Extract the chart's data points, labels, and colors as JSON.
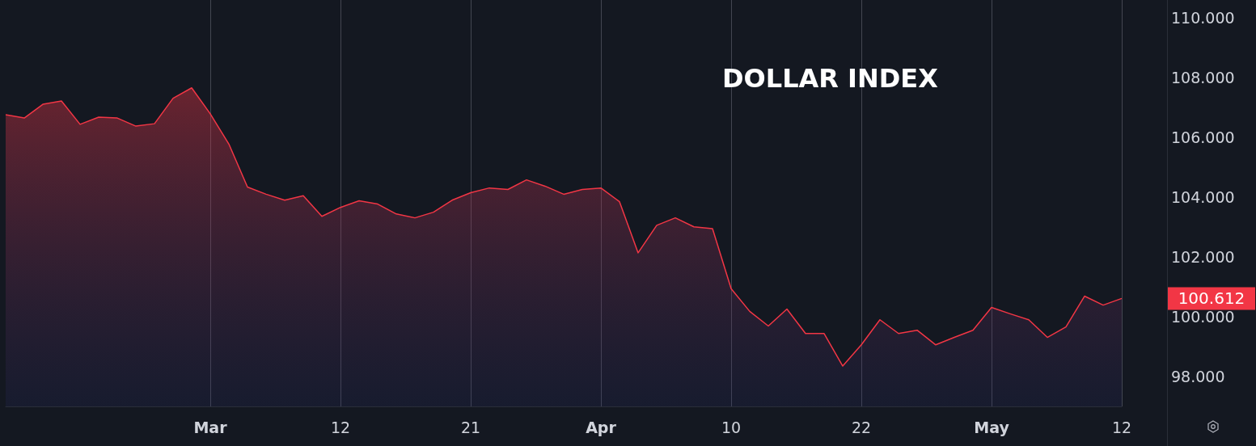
{
  "chart_data": {
    "type": "area",
    "title": "DOLLAR INDEX",
    "categories": [
      null,
      null,
      null,
      null,
      null,
      null,
      null,
      null,
      null,
      null,
      null,
      "Mar",
      null,
      null,
      null,
      null,
      null,
      null,
      "12",
      null,
      null,
      null,
      null,
      null,
      null,
      "21",
      null,
      null,
      null,
      null,
      null,
      null,
      "Apr",
      null,
      null,
      null,
      null,
      null,
      null,
      "10",
      null,
      null,
      null,
      null,
      null,
      null,
      "22",
      null,
      null,
      null,
      null,
      null,
      null,
      "May",
      null,
      null,
      null,
      null,
      null,
      null,
      "12"
    ],
    "series": [
      {
        "color": "#f23645",
        "values": [
          106.76,
          106.65,
          107.11,
          107.22,
          106.44,
          106.68,
          106.65,
          106.38,
          106.46,
          107.31,
          107.66,
          106.79,
          105.78,
          104.34,
          104.1,
          103.9,
          104.05,
          103.36,
          103.66,
          103.88,
          103.77,
          103.44,
          103.31,
          103.5,
          103.9,
          104.15,
          104.31,
          104.26,
          104.58,
          104.37,
          104.1,
          104.26,
          104.31,
          103.85,
          102.14,
          103.06,
          103.31,
          103.01,
          102.95,
          100.94,
          100.18,
          99.69,
          100.26,
          99.44,
          99.44,
          98.35,
          99.06,
          99.9,
          99.44,
          99.55,
          99.06,
          99.31,
          99.55,
          100.31,
          100.1,
          99.9,
          99.31,
          99.66,
          100.69,
          100.39,
          100.612
        ]
      }
    ],
    "ylim": [
      97,
      110.6
    ],
    "yticks": [
      {
        "value": 98,
        "label": "98.000"
      },
      {
        "value": 100,
        "label": "100.000"
      },
      {
        "value": 102,
        "label": "102.000"
      },
      {
        "value": 104,
        "label": "104.000"
      },
      {
        "value": 106,
        "label": "106.000"
      },
      {
        "value": 108,
        "label": "108.000"
      },
      {
        "value": 110,
        "label": "110.000"
      }
    ],
    "annotations": [
      "100.612"
    ],
    "grid": "x",
    "marker": "none",
    "line_style": "solid"
  }
}
